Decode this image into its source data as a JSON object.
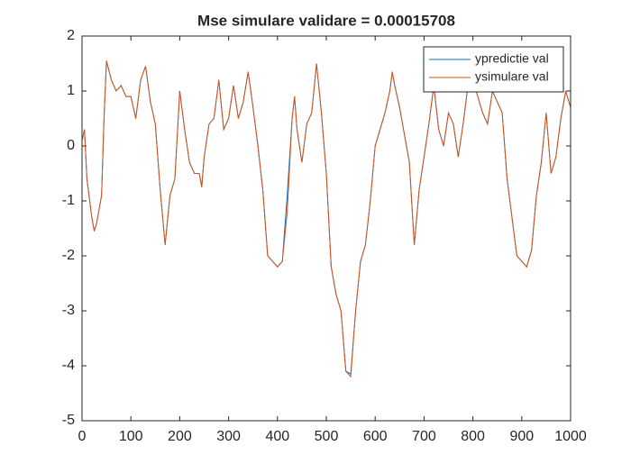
{
  "chart_data": {
    "type": "line",
    "title": "Mse simulare validare = 0.00015708",
    "x": [
      0,
      5,
      10,
      20,
      25,
      30,
      40,
      45,
      50,
      60,
      70,
      80,
      90,
      100,
      110,
      120,
      130,
      140,
      150,
      160,
      170,
      180,
      190,
      200,
      210,
      220,
      230,
      240,
      245,
      250,
      260,
      270,
      280,
      290,
      300,
      310,
      320,
      330,
      340,
      350,
      360,
      370,
      380,
      390,
      400,
      410,
      420,
      430,
      435,
      440,
      450,
      460,
      470,
      480,
      490,
      500,
      510,
      520,
      530,
      540,
      550,
      560,
      570,
      580,
      590,
      600,
      610,
      620,
      630,
      635,
      640,
      650,
      660,
      670,
      680,
      690,
      700,
      710,
      720,
      730,
      740,
      750,
      760,
      770,
      780,
      790,
      800,
      810,
      820,
      830,
      840,
      850,
      860,
      870,
      880,
      890,
      900,
      910,
      920,
      930,
      940,
      950,
      960,
      970,
      980,
      990,
      1000
    ],
    "series": [
      {
        "name": "ypredictie val",
        "color": "#0072BD",
        "values": [
          0.1,
          0.3,
          -0.6,
          -1.3,
          -1.55,
          -1.4,
          -0.9,
          0.5,
          1.55,
          1.2,
          1.0,
          1.1,
          0.9,
          0.9,
          0.5,
          1.2,
          1.45,
          0.8,
          0.4,
          -0.8,
          -1.8,
          -0.9,
          -0.6,
          1.0,
          0.3,
          -0.3,
          -0.5,
          -0.5,
          -0.75,
          -0.2,
          0.4,
          0.5,
          1.2,
          0.3,
          0.5,
          1.1,
          0.5,
          0.8,
          1.35,
          0.7,
          0.0,
          -0.8,
          -2.0,
          -2.1,
          -2.2,
          -2.1,
          -0.9,
          0.5,
          0.9,
          0.3,
          -0.3,
          0.4,
          0.6,
          1.5,
          0.6,
          -0.5,
          -2.2,
          -2.7,
          -3.0,
          -4.1,
          -4.15,
          -3.0,
          -2.1,
          -1.8,
          -1.0,
          0.0,
          0.3,
          0.6,
          1.0,
          1.35,
          1.1,
          0.7,
          0.2,
          -0.3,
          -1.8,
          -0.8,
          -0.2,
          0.4,
          1.1,
          0.3,
          0.0,
          0.6,
          0.4,
          -0.2,
          0.4,
          1.1,
          1.2,
          0.9,
          0.6,
          0.4,
          1.0,
          0.8,
          0.6,
          -0.6,
          -1.3,
          -2.0,
          -2.1,
          -2.2,
          -1.9,
          -0.9,
          -0.3,
          0.6,
          -0.5,
          -0.2,
          0.5,
          1.0,
          0.7
        ]
      },
      {
        "name": "ysimulare val",
        "color": "#D95319",
        "values": [
          0.1,
          0.3,
          -0.6,
          -1.3,
          -1.55,
          -1.4,
          -0.9,
          0.5,
          1.55,
          1.2,
          1.0,
          1.1,
          0.9,
          0.9,
          0.5,
          1.2,
          1.45,
          0.8,
          0.4,
          -0.8,
          -1.8,
          -0.9,
          -0.6,
          1.0,
          0.3,
          -0.3,
          -0.5,
          -0.5,
          -0.75,
          -0.2,
          0.4,
          0.5,
          1.2,
          0.3,
          0.5,
          1.1,
          0.5,
          0.8,
          1.35,
          0.7,
          0.0,
          -0.8,
          -2.0,
          -2.1,
          -2.2,
          -2.1,
          -1.2,
          0.5,
          0.9,
          0.3,
          -0.3,
          0.4,
          0.6,
          1.5,
          0.6,
          -0.5,
          -2.2,
          -2.7,
          -3.0,
          -4.1,
          -4.2,
          -3.0,
          -2.1,
          -1.8,
          -1.0,
          0.0,
          0.3,
          0.6,
          1.0,
          1.35,
          1.1,
          0.7,
          0.2,
          -0.3,
          -1.8,
          -0.8,
          -0.2,
          0.4,
          1.1,
          0.3,
          0.0,
          0.6,
          0.4,
          -0.2,
          0.4,
          1.1,
          1.2,
          0.9,
          0.6,
          0.4,
          1.0,
          0.8,
          0.6,
          -0.6,
          -1.3,
          -2.0,
          -2.1,
          -2.2,
          -1.9,
          -0.9,
          -0.3,
          0.6,
          -0.5,
          -0.2,
          0.5,
          1.0,
          0.7
        ]
      }
    ],
    "xlim": [
      0,
      1000
    ],
    "xticks": [
      0,
      100,
      200,
      300,
      400,
      500,
      600,
      700,
      800,
      900,
      1000
    ],
    "ylim": [
      -5,
      2
    ],
    "yticks": [
      -5,
      -4,
      -3,
      -2,
      -1,
      0,
      1,
      2
    ],
    "legend": "top-right"
  }
}
